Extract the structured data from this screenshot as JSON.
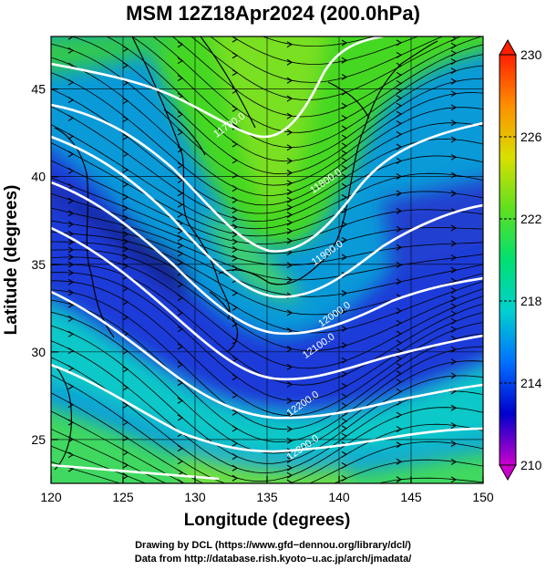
{
  "title": "MSM 12Z18Apr2024 (200.0hPa)",
  "map": {
    "lon_range": [
      120,
      150
    ],
    "lat_range": [
      22.5,
      48
    ],
    "x_ticks": [
      "120",
      "125",
      "130",
      "135",
      "140",
      "145",
      "150"
    ],
    "y_ticks": [
      "25",
      "30",
      "35",
      "40",
      "45"
    ],
    "xlabel": "Longitude (degrees)",
    "ylabel": "Latitude  (degrees)",
    "contour_labels": [
      {
        "text": "11700.0",
        "lon": 132.5,
        "lat": 42.8
      },
      {
        "text": "11800.0",
        "lon": 139.2,
        "lat": 39.6
      },
      {
        "text": "11900.0",
        "lon": 139.3,
        "lat": 35.5
      },
      {
        "text": "12000.0",
        "lon": 139.8,
        "lat": 32.0
      },
      {
        "text": "12100.0",
        "lon": 138.7,
        "lat": 30.2
      },
      {
        "text": "12200.0",
        "lon": 137.6,
        "lat": 26.9
      },
      {
        "text": "12300.0",
        "lon": 137.6,
        "lat": 24.4
      }
    ],
    "colorbar": {
      "min": 210,
      "max": 230,
      "ticks": [
        "230",
        "226",
        "222",
        "218",
        "214",
        "210"
      ],
      "colors": [
        "#cc00cc",
        "#0000cc",
        "#0070ff",
        "#00d0d0",
        "#00e070",
        "#60e020",
        "#d8e000",
        "#ff9000",
        "#ff2000"
      ]
    }
  },
  "footer": {
    "line1": "Drawing by DCL (https://www.gfd−dennou.org/library/dcl/)",
    "line2": "Data from http://database.rish.kyoto−u.ac.jp/arch/jmadata/"
  }
}
